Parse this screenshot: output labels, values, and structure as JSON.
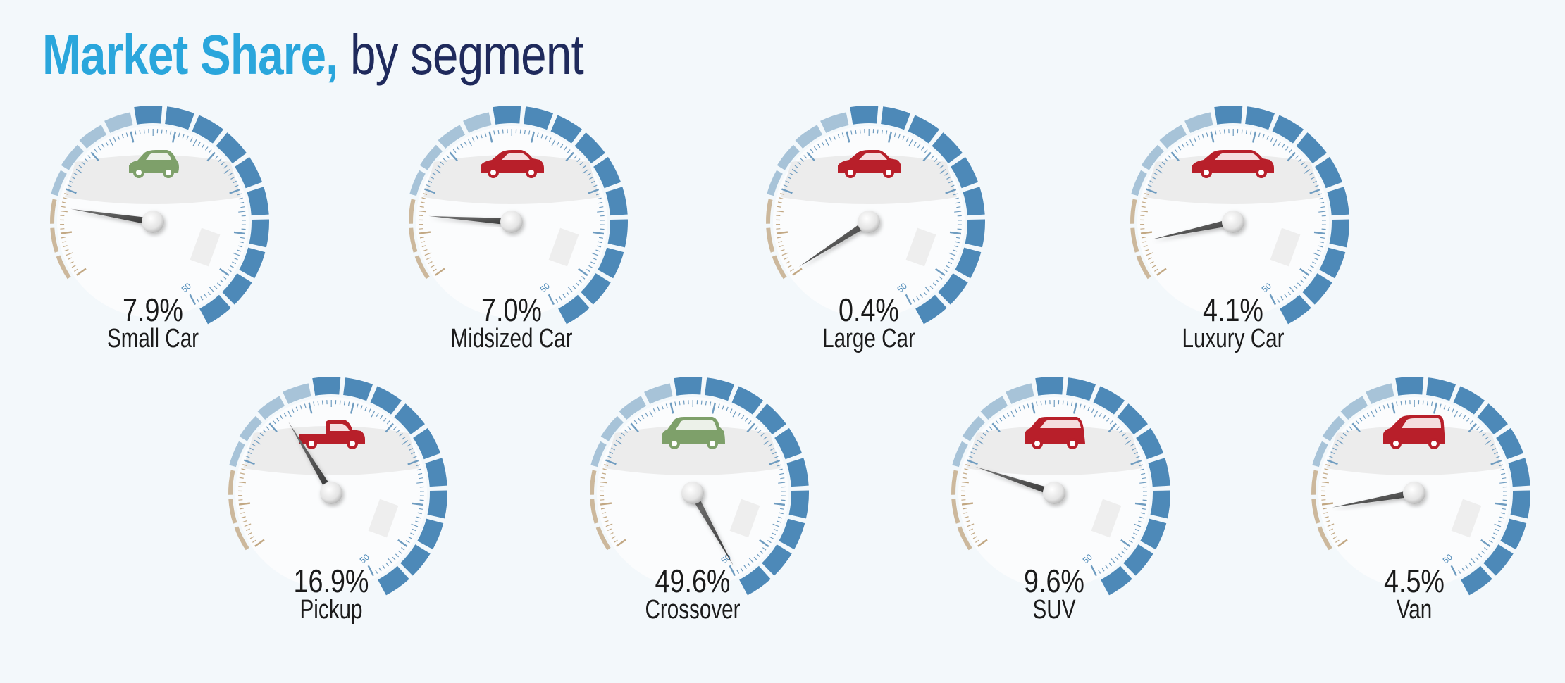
{
  "title": {
    "bold": "Market Share,",
    "light": "by segment"
  },
  "colors": {
    "title_accent": "#2aa6dc",
    "title_dark": "#1f2a5c",
    "outer_blue": "#4d89b8",
    "outer_light": "#a7c3d8",
    "tan": "#c2a884",
    "car_red": "#b81f2a",
    "car_green": "#7ea06a",
    "needle": "#4a4a4a"
  },
  "scale_max_label": "50",
  "chart_data": {
    "type": "gauge",
    "title": "Market Share, by segment",
    "unit": "%",
    "range": [
      0,
      50
    ],
    "gauges": [
      {
        "segment": "Small Car",
        "value": 7.9,
        "value_label": "7.9%",
        "icon": "hatchback-icon",
        "icon_color": "green"
      },
      {
        "segment": "Midsized Car",
        "value": 7.0,
        "value_label": "7.0%",
        "icon": "sedan-icon",
        "icon_color": "red"
      },
      {
        "segment": "Large Car",
        "value": 0.4,
        "value_label": "0.4%",
        "icon": "sedan-icon",
        "icon_color": "red"
      },
      {
        "segment": "Luxury Car",
        "value": 4.1,
        "value_label": "4.1%",
        "icon": "limo-icon",
        "icon_color": "red"
      },
      {
        "segment": "Pickup",
        "value": 16.9,
        "value_label": "16.9%",
        "icon": "pickup-icon",
        "icon_color": "red"
      },
      {
        "segment": "Crossover",
        "value": 49.6,
        "value_label": "49.6%",
        "icon": "crossover-icon",
        "icon_color": "green"
      },
      {
        "segment": "SUV",
        "value": 9.6,
        "value_label": "9.6%",
        "icon": "suv-icon",
        "icon_color": "red"
      },
      {
        "segment": "Van",
        "value": 4.5,
        "value_label": "4.5%",
        "icon": "van-icon",
        "icon_color": "red"
      }
    ]
  }
}
